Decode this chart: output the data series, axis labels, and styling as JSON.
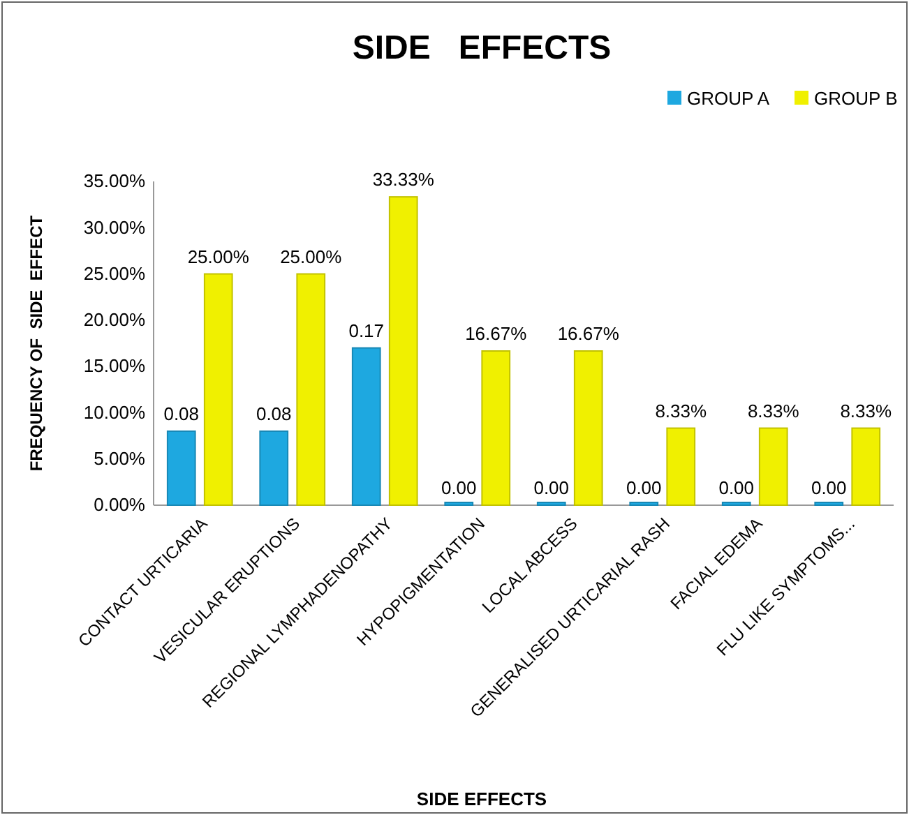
{
  "chart_data": {
    "type": "bar",
    "title": "SIDE   EFFECTS",
    "xlabel": "SIDE EFFECTS",
    "ylabel": "FREQUENCY OF  SIDE  EFFECT",
    "categories": [
      "CONTACT URTICARIA",
      "VESICULAR ERUPTIONS",
      "REGIONAL LYMPHADENOPATHY",
      "HYPOPIGMENTATION",
      "LOCAL ABCESS",
      "GENERALISED URTICARIAL RASH",
      "FACIAL EDEMA",
      "FLU LIKE SYMPTOMS..."
    ],
    "series": [
      {
        "name": "GROUP A",
        "color": "#1ea8e0",
        "values": [
          0.08,
          0.08,
          0.17,
          0,
          0,
          0,
          0,
          0
        ],
        "value_labels": [
          "0.08",
          "0.08",
          "0.17",
          "0.00",
          "0.00",
          "0.00",
          "0.00",
          "0.00"
        ]
      },
      {
        "name": "GROUP B",
        "color": "#f0f000",
        "values": [
          0.25,
          0.25,
          0.3333,
          0.1667,
          0.1667,
          0.0833,
          0.0833,
          0.0833
        ],
        "value_labels": [
          "25.00%",
          "25.00%",
          "33.33%",
          "16.67%",
          "16.67%",
          "8.33%",
          "8.33%",
          "8.33%"
        ]
      }
    ],
    "ylim": [
      0,
      0.35
    ],
    "yticks": [
      {
        "value": 0,
        "label": "0.00%"
      },
      {
        "value": 0.05,
        "label": "5.00%"
      },
      {
        "value": 0.1,
        "label": "10.00%"
      },
      {
        "value": 0.15,
        "label": "15.00%"
      },
      {
        "value": 0.2,
        "label": "20.00%"
      },
      {
        "value": 0.25,
        "label": "25.00%"
      },
      {
        "value": 0.3,
        "label": "30.00%"
      },
      {
        "value": 0.35,
        "label": "35.00%"
      }
    ],
    "grid": false,
    "legend": "top right"
  }
}
